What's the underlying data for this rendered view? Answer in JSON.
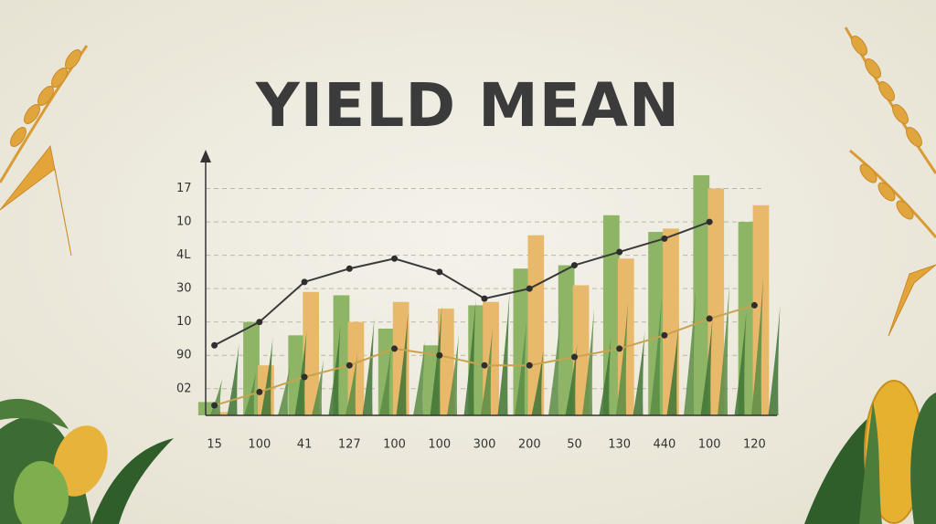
{
  "chart_data": {
    "type": "bar",
    "title": "YIELD MEAN",
    "categories": [
      "15",
      "100",
      "41",
      "127",
      "100",
      "100",
      "300",
      "200",
      "50",
      "130",
      "440",
      "100",
      "120"
    ],
    "series": [
      {
        "color": "#8db565",
        "values": [
          0.6,
          3.0,
          2.6,
          3.8,
          2.8,
          2.3,
          3.5,
          4.6,
          4.7,
          6.2,
          5.7,
          7.4,
          6.0
        ]
      },
      {
        "color": "#e9b96b",
        "values": [
          0.3,
          1.7,
          3.9,
          3.0,
          3.6,
          3.4,
          3.6,
          5.6,
          4.1,
          4.9,
          5.8,
          7.0,
          6.5
        ]
      }
    ],
    "lines": [
      {
        "color": "#3a3a3a",
        "values": [
          2.3,
          3.0,
          4.2,
          4.6,
          4.9,
          4.5,
          3.7,
          4.0,
          4.7,
          5.1,
          5.5,
          6.0,
          null
        ]
      },
      {
        "color": "#c9a24f",
        "values": [
          0.5,
          0.9,
          1.35,
          1.7,
          2.2,
          2.0,
          1.7,
          1.7,
          1.95,
          2.2,
          2.6,
          3.1,
          3.5
        ]
      }
    ],
    "ylim": [
      0.2,
      8
    ],
    "yticks": [
      {
        "value": 1,
        "label": "02"
      },
      {
        "value": 2,
        "label": "90"
      },
      {
        "value": 3,
        "label": "10"
      },
      {
        "value": 4,
        "label": "30"
      },
      {
        "value": 5,
        "label": "4L"
      },
      {
        "value": 6,
        "label": "10"
      },
      {
        "value": 7,
        "label": "17"
      }
    ],
    "grid": true
  }
}
